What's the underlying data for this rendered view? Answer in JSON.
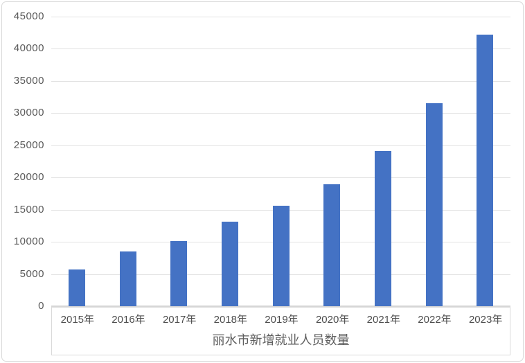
{
  "chart_data": {
    "type": "bar",
    "title": "丽水市新增就业人员数量",
    "categories": [
      "2015年",
      "2016年",
      "2017年",
      "2018年",
      "2019年",
      "2020年",
      "2021年",
      "2022年",
      "2023年"
    ],
    "values": [
      5700,
      8500,
      10100,
      13100,
      15600,
      19000,
      24100,
      31500,
      42200
    ],
    "xlabel": "",
    "ylabel": "",
    "ylim": [
      0,
      45000
    ],
    "y_ticks": [
      0,
      5000,
      10000,
      15000,
      20000,
      25000,
      30000,
      35000,
      40000,
      45000
    ],
    "grid": true,
    "legend_position": "none",
    "colors": {
      "bar_fill": "#4472c4",
      "gridline": "#e2e2e2",
      "axis_line": "#d6d6d6",
      "tick_text": "#595959",
      "title_text": "#5e5e5e",
      "frame_border": "#d9d9d9"
    }
  }
}
